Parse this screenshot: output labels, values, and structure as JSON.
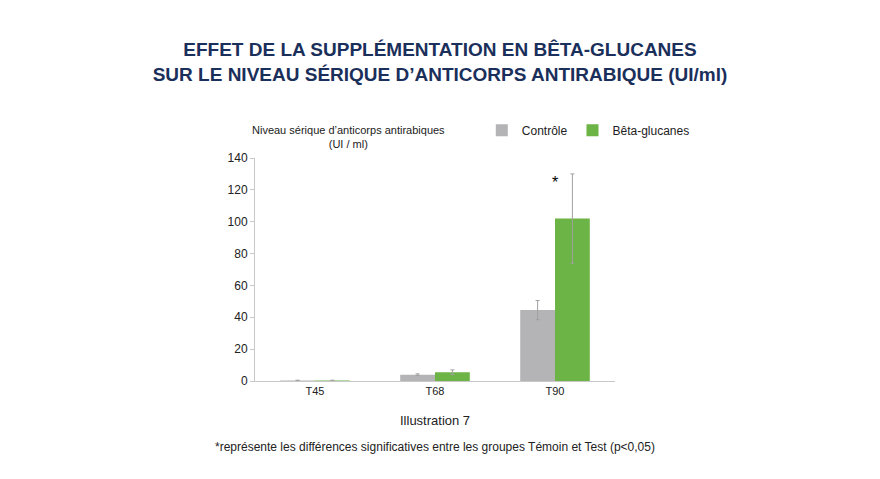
{
  "chart_data": {
    "type": "bar",
    "title": "EFFET DE LA SUPPLÉMENTATION EN BÊTA-GLUCANES\nSUR LE NIVEAU SÉRIQUE D’ANTICORPS ANTIRABIQUE (UI/ml)",
    "ylabel": "Niveau sérique d’anticorps antirabiques\n(UI / ml)",
    "categories": [
      "T45",
      "T68",
      "T90"
    ],
    "series": [
      {
        "name": "Contrôle",
        "color": "#b4b4b6",
        "values": [
          0.3,
          4,
          44.5
        ],
        "errors": [
          0.2,
          0.5,
          6
        ]
      },
      {
        "name": "Bêta-glucanes",
        "color": "#6cb445",
        "values": [
          0.3,
          5.5,
          102
        ],
        "errors": [
          0.2,
          1.5,
          28
        ]
      }
    ],
    "annotations": [
      {
        "text": "*",
        "category": "T90",
        "series": "Bêta-glucanes"
      }
    ],
    "caption": "Illustration 7",
    "footnote": "*représente les différences significatives entre les groupes Témoin et Test (p<0,05)",
    "ylim": [
      0,
      140
    ],
    "yticks": [
      0,
      20,
      40,
      60,
      80,
      100,
      120,
      140
    ],
    "grid": false,
    "legend": "top"
  }
}
